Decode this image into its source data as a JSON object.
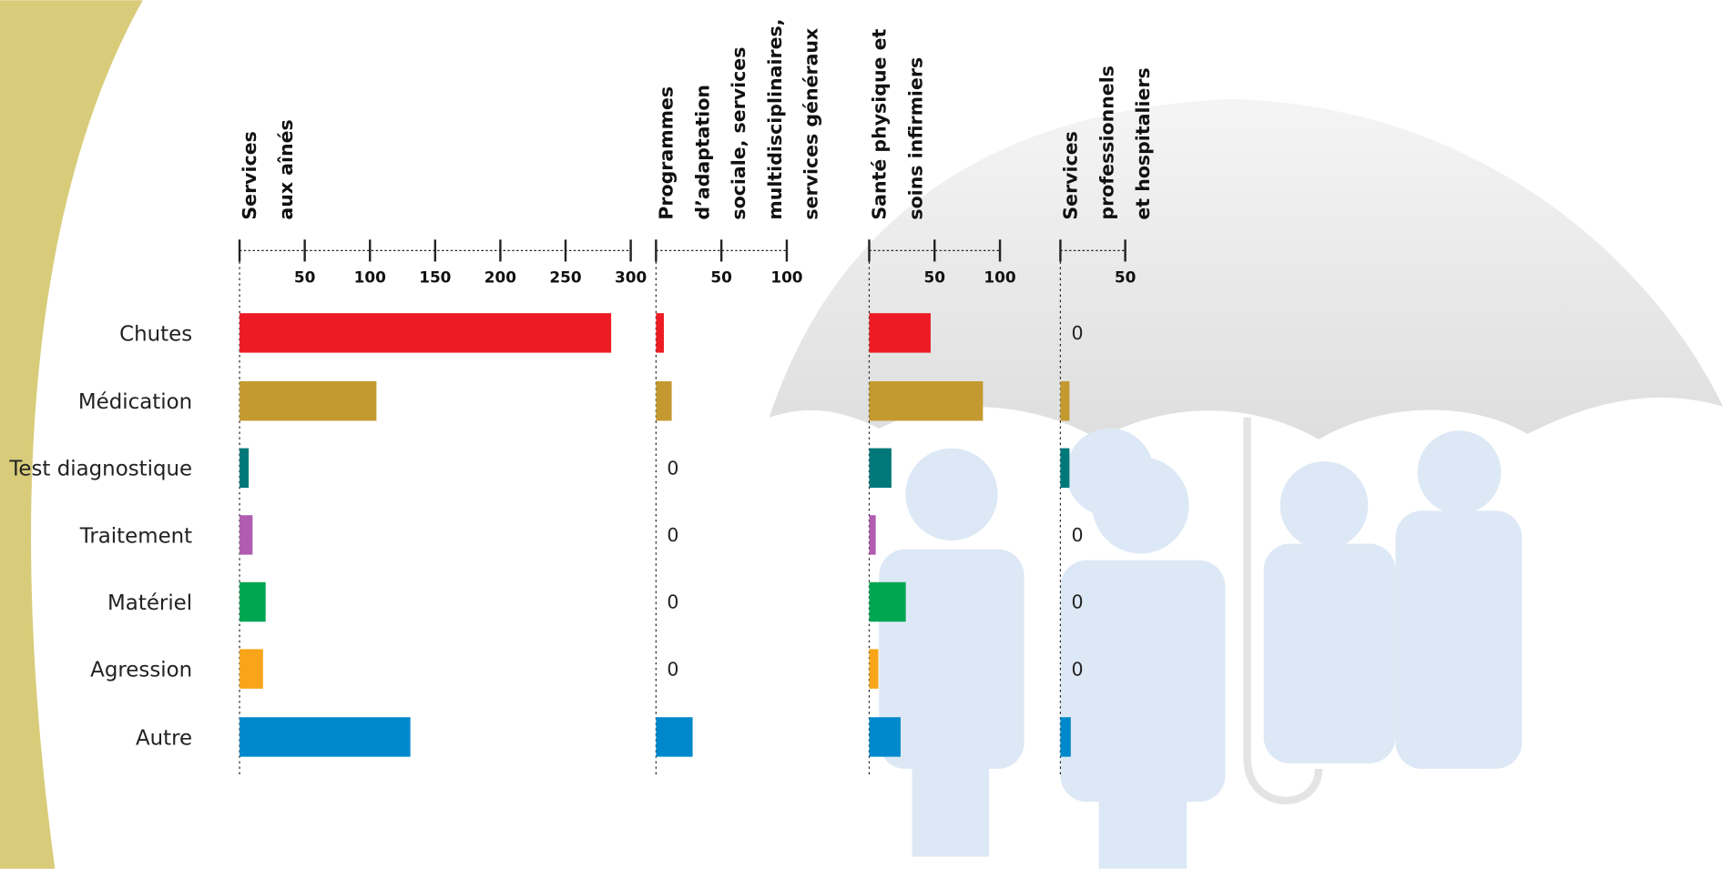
{
  "chart_data": {
    "type": "bar",
    "orientation": "horizontal",
    "categories": [
      "Chutes",
      "Médication",
      "Test diagnostique",
      "Traitement",
      "Matériel",
      "Agression",
      "Autre"
    ],
    "colors": [
      "#ed1c24",
      "#c49a30",
      "#00787a",
      "#b05db0",
      "#00a651",
      "#f9a51a",
      "#0088cc"
    ],
    "panels": [
      {
        "title_lines": [
          "Services",
          "aux aînés"
        ],
        "values": [
          285,
          105,
          7,
          10,
          20,
          18,
          131
        ],
        "xlim": [
          0,
          300
        ],
        "xticks": [
          50,
          100,
          150,
          200,
          250,
          300
        ]
      },
      {
        "title_lines": [
          "Programmes",
          "d’adaptation",
          "sociale, services",
          "multidisciplinaires,",
          "services généraux"
        ],
        "values": [
          6,
          12,
          0,
          0,
          0,
          0,
          28
        ],
        "xlim": [
          0,
          100
        ],
        "xticks": [
          50,
          100
        ]
      },
      {
        "title_lines": [
          "Santé physique et",
          "soins infirmiers"
        ],
        "values": [
          47,
          87,
          17,
          5,
          28,
          7,
          24
        ],
        "xlim": [
          0,
          100
        ],
        "xticks": [
          50,
          100
        ]
      },
      {
        "title_lines": [
          "Services",
          "professionnels",
          "et hospitaliers"
        ],
        "values": [
          0,
          7,
          7,
          0,
          0,
          0,
          8
        ],
        "xlim": [
          0,
          50
        ],
        "xticks": [
          50
        ]
      }
    ]
  }
}
